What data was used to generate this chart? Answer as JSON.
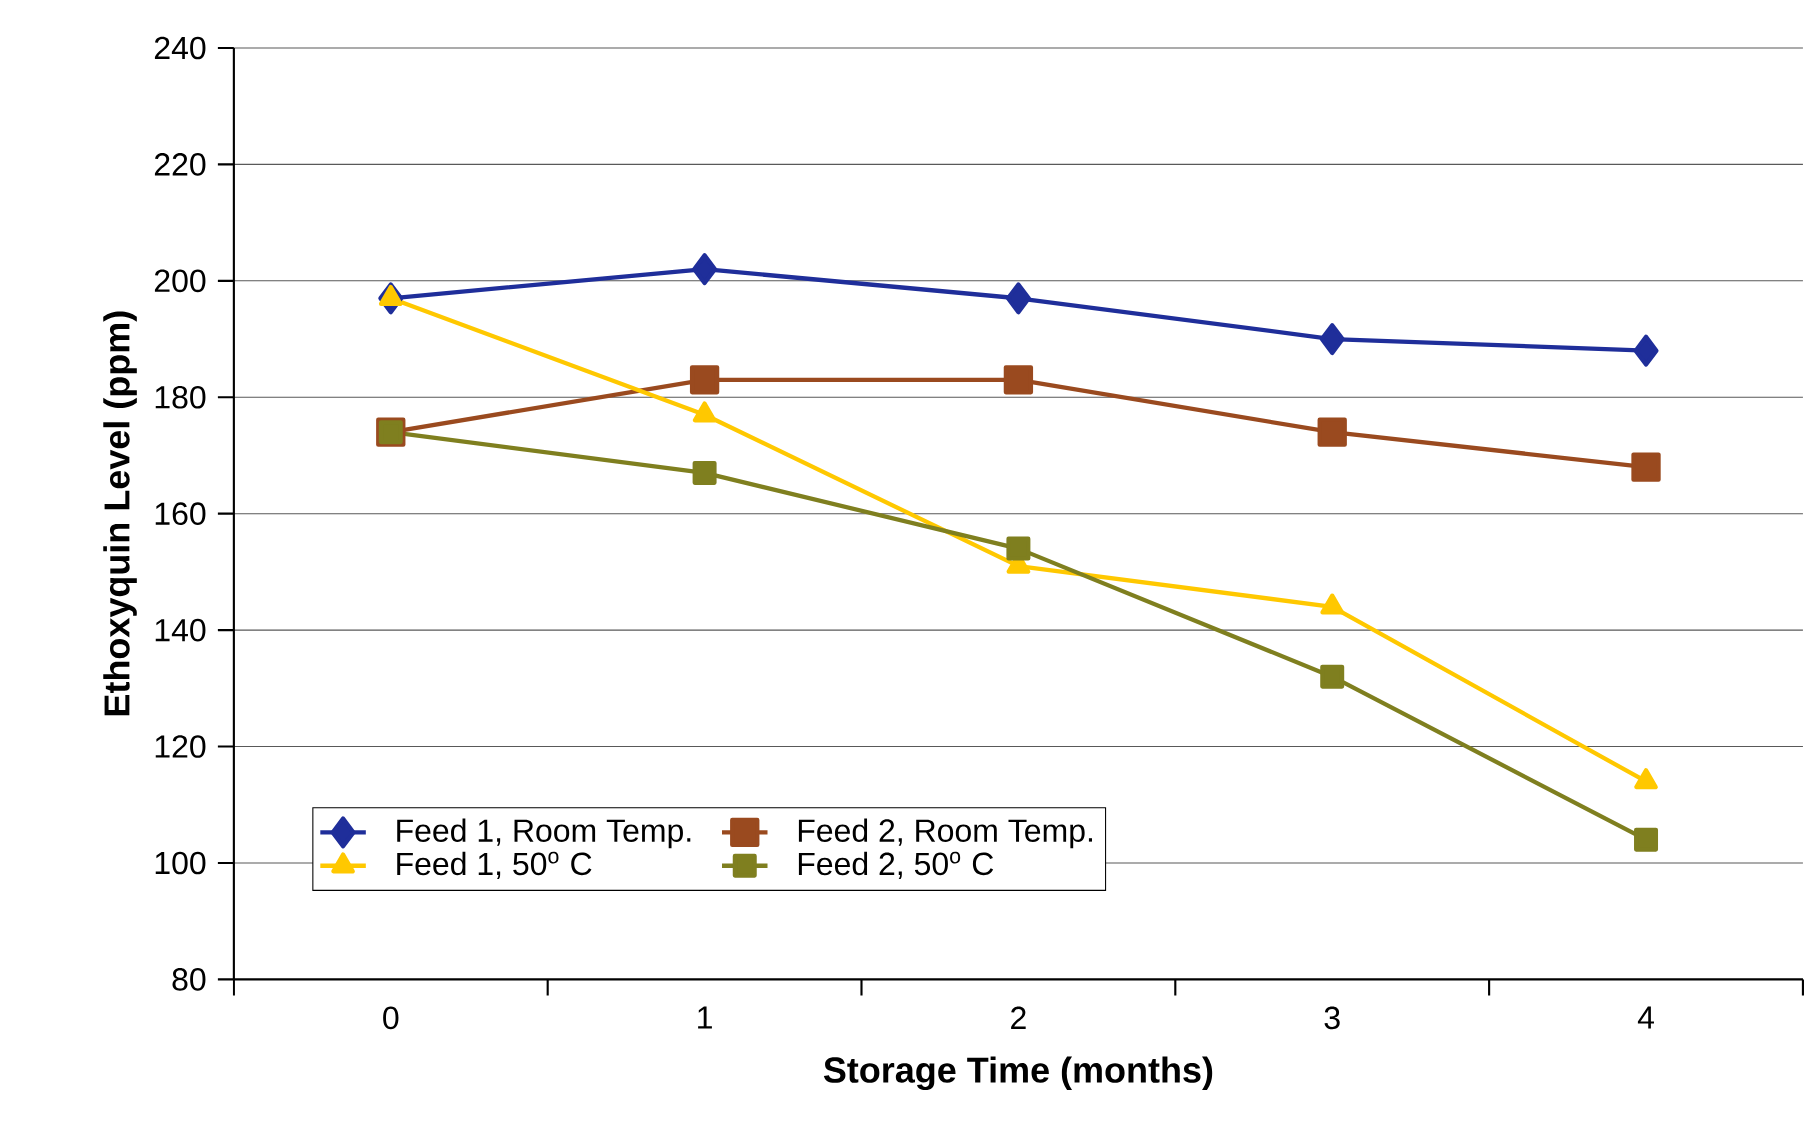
{
  "chart_data": {
    "type": "line",
    "xlabel": "Storage Time (months)",
    "ylabel": "Ethoxyquin Level (ppm)",
    "categories": [
      "0",
      "1",
      "2",
      "3",
      "4"
    ],
    "series": [
      {
        "name": "Feed 1, Room Temp.",
        "color": "#1f2e9a",
        "marker": "diamond",
        "values": [
          197,
          202,
          197,
          190,
          188
        ]
      },
      {
        "name": "Feed 2, Room Temp.",
        "color": "#9a4a1f",
        "marker": "square",
        "values": [
          174,
          183,
          183,
          174,
          168
        ]
      },
      {
        "name": "Feed 1, 50$^{o}$ C",
        "color": "#ffc800",
        "marker": "triangle",
        "values": [
          197,
          177,
          151,
          144,
          114
        ]
      },
      {
        "name": "Feed 2, 50$^{o}$ C",
        "color": "#7f7f1f",
        "marker": "square",
        "values": [
          174,
          167,
          154,
          132,
          104
        ]
      }
    ],
    "ylim": [
      80,
      240
    ],
    "yticks": [
      80,
      100,
      120,
      140,
      160,
      180,
      200,
      220,
      240
    ],
    "grid": "y",
    "legend": "bottom left",
    "line_style": "solid"
  }
}
